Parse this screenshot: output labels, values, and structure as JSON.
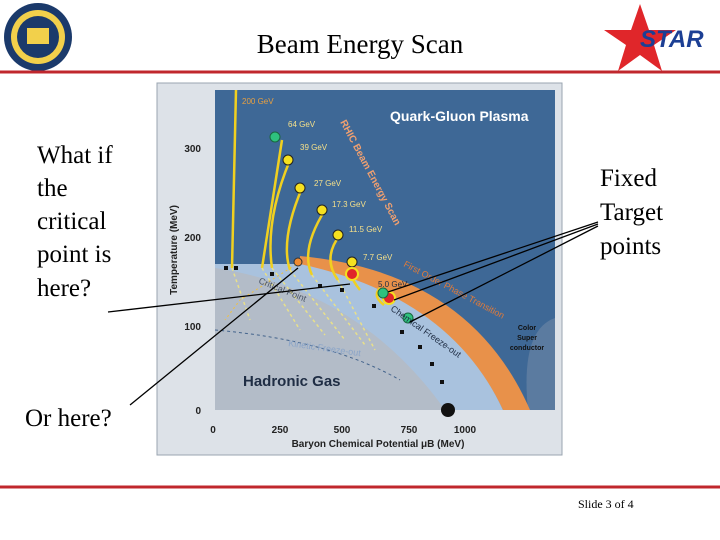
{
  "header": {
    "title": "Beam Energy Scan",
    "logo_text": "STAR"
  },
  "left_notes": {
    "question": [
      "What if",
      "the",
      "critical",
      "point is",
      "here?"
    ],
    "second": "Or here?"
  },
  "right_note": [
    "Fixed",
    "Target",
    "points"
  ],
  "figure": {
    "region_qgp": "Quark-Gluon Plasma",
    "region_hadron": "Hadronic Gas",
    "region_csc": [
      "Color",
      "Super",
      "conductor"
    ],
    "scan_label": "RHIC Beam Energy Scan",
    "critical_point": "Critical Point",
    "first_order": "First Order Phase Transition",
    "chemical": "Chemical Freeze-out",
    "kinetic": "Kinetic Freeze-out",
    "energies": [
      "200 GeV",
      "64 GeV",
      "39 GeV",
      "27 GeV",
      "17.3 GeV",
      "11.5 GeV",
      "7.7 GeV",
      "5.0 GeV"
    ],
    "y_axis_title": "Temperature (MeV)",
    "x_axis_title": "Baryon Chemical Potential μB (MeV)",
    "y_ticks": [
      "300",
      "200",
      "100",
      "0"
    ],
    "x_ticks": [
      "0",
      "250",
      "500",
      "750",
      "1000"
    ]
  },
  "footer": {
    "slide": "Slide 3 of 4"
  }
}
